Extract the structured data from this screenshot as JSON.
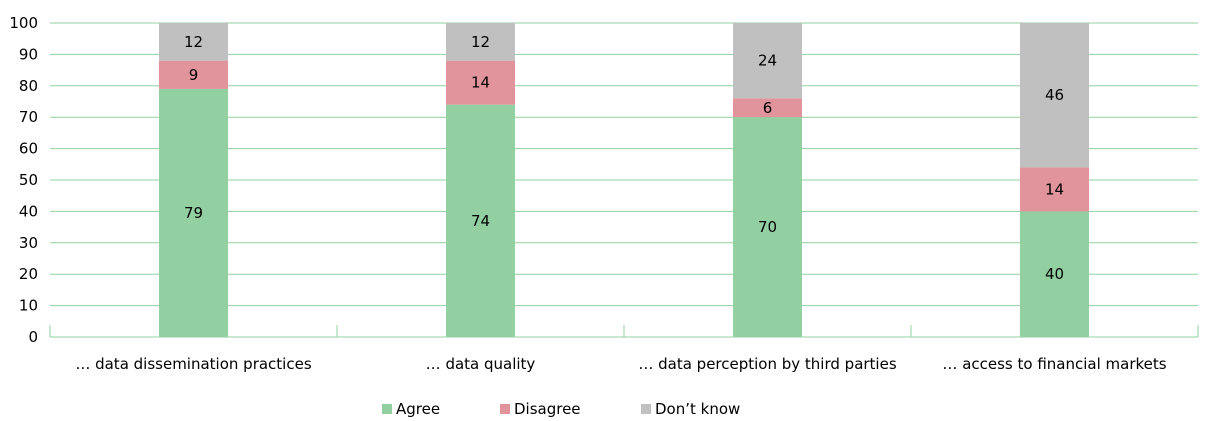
{
  "chart_data": {
    "type": "bar",
    "stacked": true,
    "categories": [
      "… data dissemination practices",
      "… data quality",
      "… data perception by third parties",
      "… access to financial markets"
    ],
    "series": [
      {
        "name": "Agree",
        "values": [
          79,
          74,
          70,
          40
        ],
        "color": "#92d0a1"
      },
      {
        "name": "Disagree",
        "values": [
          9,
          14,
          6,
          14
        ],
        "color": "#e1949b"
      },
      {
        "name": "Don’t know",
        "values": [
          12,
          12,
          24,
          46
        ],
        "color": "#c0c0c0"
      }
    ],
    "y_ticks": [
      0,
      10,
      20,
      30,
      40,
      50,
      60,
      70,
      80,
      90,
      100
    ],
    "ylim": [
      0,
      100
    ],
    "grid": true,
    "grid_color": "#92d0a1",
    "legend_position": "bottom"
  }
}
